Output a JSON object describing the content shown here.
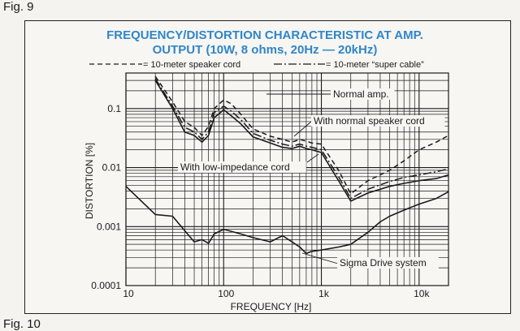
{
  "figure": {
    "label_top": "Fig. 9",
    "label_bottom": "Fig. 10"
  },
  "colors": {
    "title": "#2f86c8",
    "ink": "#1a1a1a",
    "paper": "#f7f6f3"
  },
  "chart_data": {
    "type": "line",
    "title": "FREQUENCY/DISTORTION CHARACTERISTIC AT AMP.",
    "subtitle": "OUTPUT (10W, 8 ohms, 20Hz — 20kHz)",
    "xlabel": "FREQUENCY [Hz]",
    "ylabel": "DISTORTION [%]",
    "xscale": "log",
    "yscale": "log",
    "xlim": [
      10,
      20000
    ],
    "ylim": [
      0.0001,
      0.4
    ],
    "x_ticks": [
      {
        "value": 10,
        "label": "10"
      },
      {
        "value": 100,
        "label": "100"
      },
      {
        "value": 1000,
        "label": "1k"
      },
      {
        "value": 10000,
        "label": "10k"
      }
    ],
    "y_ticks": [
      {
        "value": 0.1,
        "label": "0.1"
      },
      {
        "value": 0.01,
        "label": "0.01"
      },
      {
        "value": 0.001,
        "label": "0.001"
      },
      {
        "value": 0.0001,
        "label": "0.0001"
      }
    ],
    "legend": [
      {
        "style": "dashed",
        "label": "= 10-meter speaker cord"
      },
      {
        "style": "dashdot",
        "label": "= 10-meter “super cable”"
      }
    ],
    "series": [
      {
        "name": "Normal amp.",
        "style": "dashed",
        "x": [
          20,
          30,
          40,
          50,
          60,
          70,
          80,
          100,
          120,
          150,
          200,
          300,
          400,
          500,
          600,
          700,
          800,
          1000,
          1500,
          2000,
          3000,
          5000,
          7000,
          10000,
          15000,
          20000
        ],
        "y": [
          0.35,
          0.13,
          0.06,
          0.048,
          0.035,
          0.05,
          0.1,
          0.14,
          0.12,
          0.08,
          0.045,
          0.034,
          0.03,
          0.027,
          0.03,
          0.028,
          0.026,
          0.025,
          0.009,
          0.0036,
          0.006,
          0.009,
          0.013,
          0.02,
          0.027,
          0.035
        ]
      },
      {
        "name": "With normal speaker cord",
        "style": "dashdot",
        "x": [
          20,
          30,
          40,
          50,
          60,
          70,
          80,
          100,
          120,
          150,
          200,
          300,
          400,
          500,
          600,
          700,
          800,
          1000,
          1500,
          2000,
          3000,
          5000,
          7000,
          10000,
          15000,
          20000
        ],
        "y": [
          0.32,
          0.11,
          0.048,
          0.04,
          0.03,
          0.04,
          0.085,
          0.11,
          0.09,
          0.065,
          0.038,
          0.029,
          0.025,
          0.023,
          0.025,
          0.023,
          0.022,
          0.02,
          0.007,
          0.003,
          0.0043,
          0.0058,
          0.0068,
          0.0075,
          0.0085,
          0.0095
        ]
      },
      {
        "name": "With low-impedance cord",
        "style": "solid",
        "x": [
          20,
          30,
          40,
          50,
          60,
          70,
          80,
          100,
          120,
          150,
          200,
          300,
          400,
          500,
          600,
          700,
          800,
          1000,
          1500,
          2000,
          3000,
          5000,
          7000,
          10000,
          15000,
          20000
        ],
        "y": [
          0.3,
          0.1,
          0.04,
          0.035,
          0.027,
          0.035,
          0.07,
          0.095,
          0.075,
          0.055,
          0.033,
          0.026,
          0.022,
          0.021,
          0.023,
          0.021,
          0.02,
          0.018,
          0.006,
          0.0027,
          0.0037,
          0.0048,
          0.0054,
          0.006,
          0.0065,
          0.0075
        ]
      },
      {
        "name": "Sigma Drive system",
        "style": "solid",
        "x": [
          10,
          20,
          30,
          40,
          50,
          60,
          70,
          80,
          100,
          150,
          200,
          300,
          400,
          500,
          600,
          700,
          800,
          1000,
          1500,
          2000,
          3000,
          4000,
          5000,
          7000,
          10000,
          15000,
          20000
        ],
        "y": [
          0.0048,
          0.0016,
          0.0015,
          0.00085,
          0.00055,
          0.0006,
          0.00052,
          0.00075,
          0.0009,
          0.00075,
          0.00065,
          0.00055,
          0.0007,
          0.00055,
          0.00045,
          0.00035,
          0.00038,
          0.0004,
          0.00045,
          0.0005,
          0.0008,
          0.0012,
          0.0015,
          0.0019,
          0.0024,
          0.003,
          0.0039
        ]
      }
    ],
    "annotations": [
      {
        "text": "Normal amp.",
        "series": "Normal amp."
      },
      {
        "text": "With normal speaker cord",
        "series": "With normal speaker cord"
      },
      {
        "text": "With low-impedance cord",
        "series": "With low-impedance cord"
      },
      {
        "text": "Sigma Drive system",
        "series": "Sigma Drive system"
      }
    ]
  }
}
